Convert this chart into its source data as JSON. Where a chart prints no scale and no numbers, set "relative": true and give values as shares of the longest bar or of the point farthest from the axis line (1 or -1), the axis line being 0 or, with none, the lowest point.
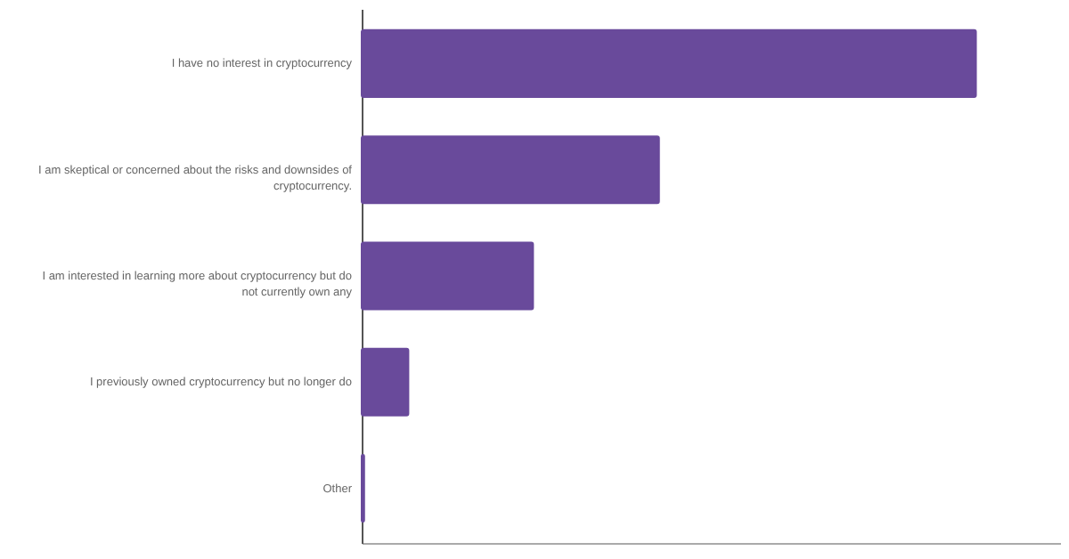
{
  "chart_data": {
    "type": "bar",
    "orientation": "horizontal",
    "relative": true,
    "categories": [
      "I have no interest in cryptocurrency",
      "I am skeptical or concerned about the risks and downsides of cryptocurrency.",
      "I am interested in learning more about cryptocurrency but do not currently own any",
      "I previously owned cryptocurrency but no longer do",
      "Other"
    ],
    "values": [
      1,
      0.484,
      0.279,
      0.076,
      0.004
    ],
    "color": "#694a9b"
  }
}
